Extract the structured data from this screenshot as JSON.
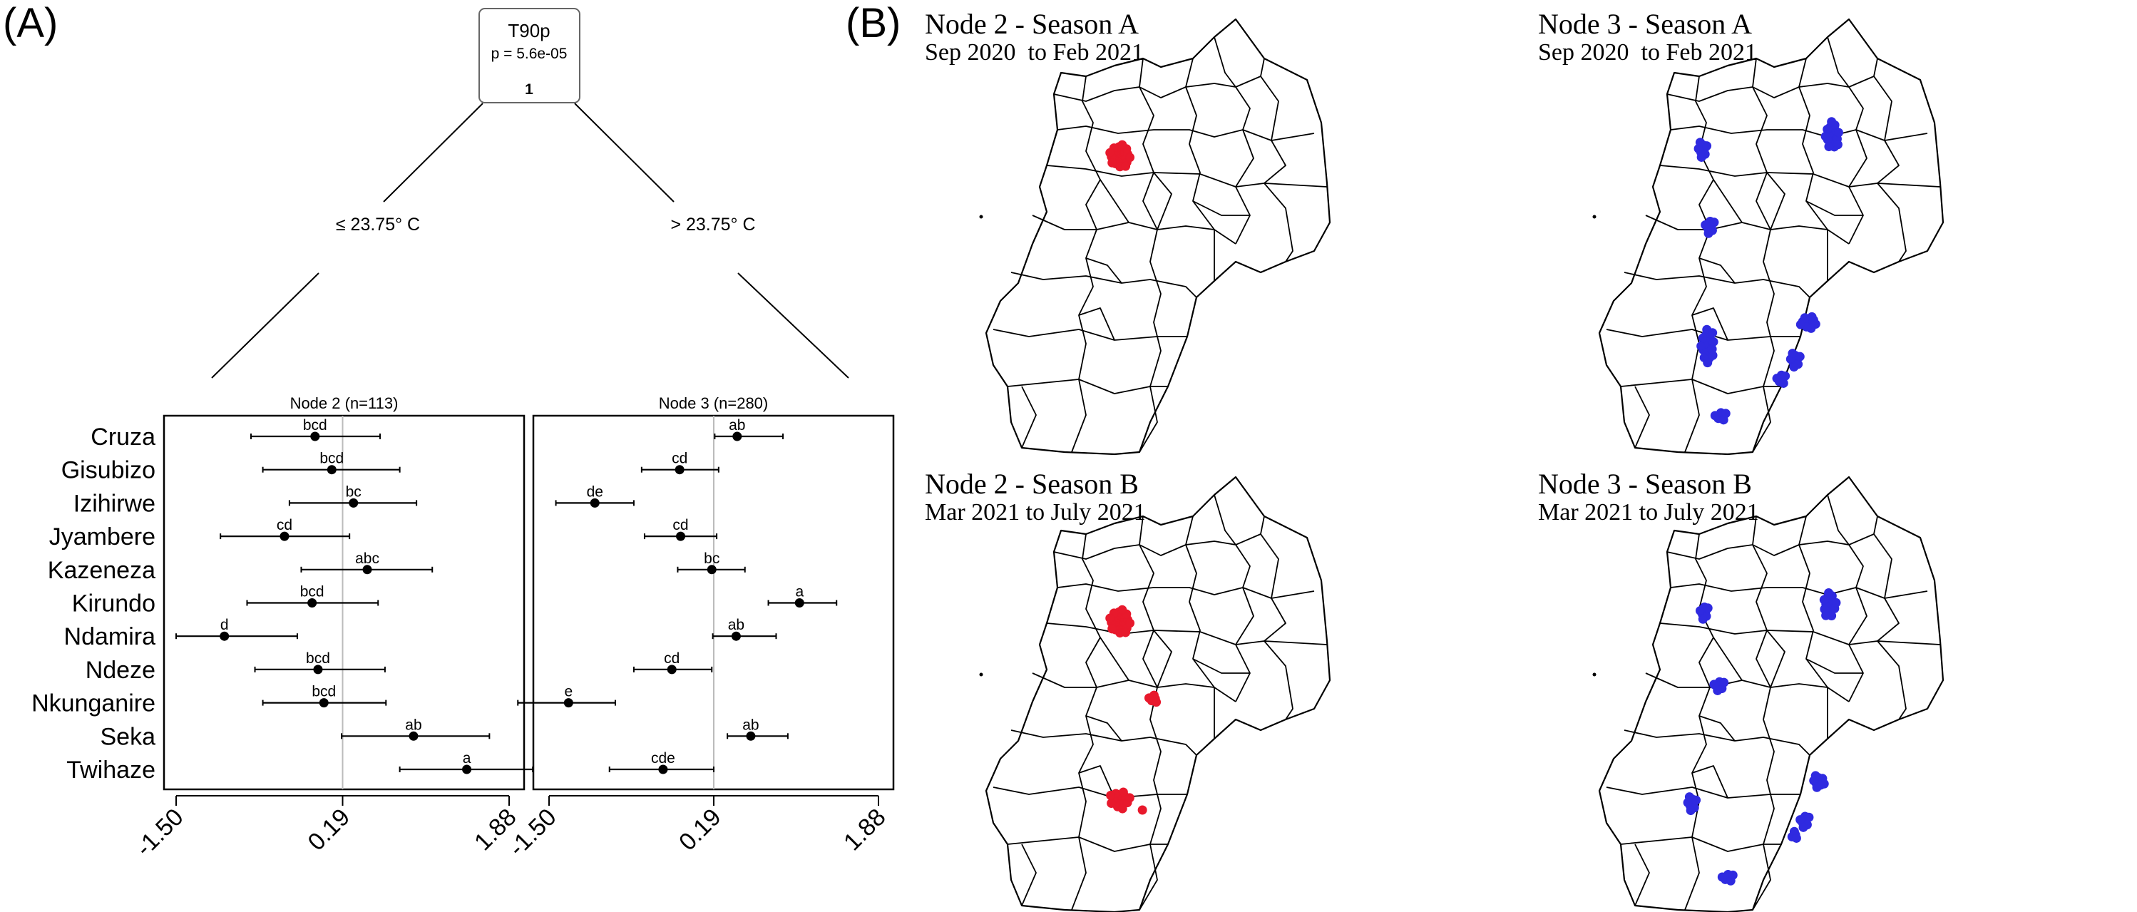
{
  "panel_labels": {
    "a": "(A)",
    "b": "(B)"
  },
  "tree": {
    "root": {
      "variable": "T90p",
      "p_value": "p = 5.6e-05",
      "id": "1"
    },
    "left_split": "≤ 23.75° C",
    "right_split": "> 23.75° C"
  },
  "chart_data": [
    {
      "type": "scatter",
      "title": "Node 2 (n=113)",
      "categories": [
        "Cruza",
        "Gisubizo",
        "Izihirwe",
        "Jyambere",
        "Kazeneza",
        "Kirundo",
        "Ndamira",
        "Ndeze",
        "Nkunganire",
        "Seka",
        "Twihaze"
      ],
      "estimates": [
        -0.09,
        0.08,
        0.3,
        -0.4,
        0.44,
        -0.12,
        -1.01,
        -0.06,
        0.0,
        0.91,
        1.45
      ],
      "lower": [
        -0.74,
        -0.62,
        -0.35,
        -1.05,
        -0.23,
        -0.78,
        -1.5,
        -0.7,
        -0.62,
        0.18,
        0.77
      ],
      "upper": [
        0.57,
        0.77,
        0.94,
        0.26,
        1.1,
        0.55,
        -0.27,
        0.62,
        0.63,
        1.68,
        2.12
      ],
      "letters": [
        "bcd",
        "bcd",
        "bc",
        "cd",
        "abc",
        "bcd",
        "d",
        "bcd",
        "bcd",
        "ab",
        "a"
      ],
      "reference_line": 0.19,
      "xticks": [
        "-1.50",
        "0.19",
        "1.88"
      ],
      "xlim": [
        -1.5,
        1.88
      ]
    },
    {
      "type": "scatter",
      "title": "Node 3 (n=280)",
      "categories": [
        "Cruza",
        "Gisubizo",
        "Izihirwe",
        "Jyambere",
        "Kazeneza",
        "Kirundo",
        "Ndamira",
        "Ndeze",
        "Nkunganire",
        "Seka",
        "Twihaze"
      ],
      "estimates": [
        0.43,
        -0.16,
        -1.03,
        -0.15,
        0.17,
        1.07,
        0.42,
        -0.24,
        -1.3,
        0.57,
        -0.33
      ],
      "lower": [
        0.2,
        -0.55,
        -1.43,
        -0.52,
        -0.18,
        0.75,
        0.18,
        -0.63,
        -1.82,
        0.33,
        -0.88
      ],
      "upper": [
        0.9,
        0.24,
        -0.63,
        0.22,
        0.51,
        1.45,
        0.83,
        0.17,
        -0.82,
        0.95,
        0.19
      ],
      "letters": [
        "ab",
        "cd",
        "de",
        "cd",
        "bc",
        "a",
        "ab",
        "cd",
        "e",
        "ab",
        "cde"
      ],
      "reference_line": 0.19,
      "xticks": [
        "-1.50",
        "0.19",
        "1.88"
      ],
      "xlim": [
        -1.5,
        1.88
      ]
    }
  ],
  "maps": [
    {
      "title": "Node 2 - Season A",
      "subtitle": "Sep 2020  to Feb 2021",
      "color": "#e8192c"
    },
    {
      "title": "Node 3 - Season A",
      "subtitle": "Sep 2020  to Feb 2021",
      "color": "#2f2ae0"
    },
    {
      "title": "Node 2 - Season B",
      "subtitle": "Mar 2021 to July 2021",
      "color": "#e8192c"
    },
    {
      "title": "Node 3 - Season B",
      "subtitle": "Mar 2021 to July 2021",
      "color": "#2f2ae0"
    }
  ]
}
